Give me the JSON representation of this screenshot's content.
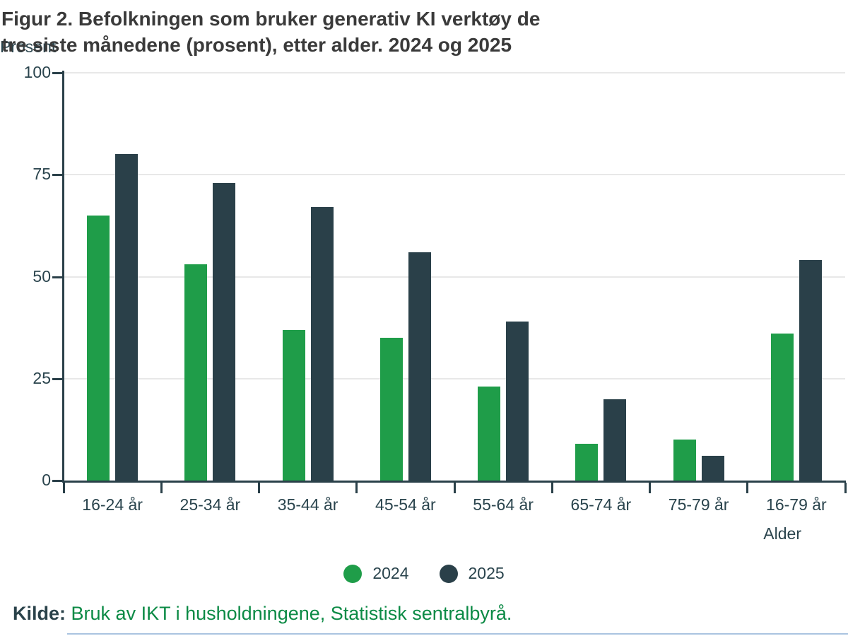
{
  "figure": {
    "title_line1": "Figur 2. Befolkningen som bruker generativ KI verktøy de",
    "title_line2": "tre siste månedene (prosent), etter alder. 2024 og 2025",
    "y_axis_label": "Prosent",
    "x_axis_label": "Alder",
    "source_label": "Kilde:",
    "source_link_text": "Bruk av IKT i husholdningene, Statistisk sentralbyrå."
  },
  "legend": {
    "position": "bottom",
    "items": [
      {
        "label": "2024",
        "color": "#1f9d49"
      },
      {
        "label": "2025",
        "color": "#2a4049"
      }
    ]
  },
  "chart_data": {
    "type": "bar",
    "title": "Figur 2. Befolkningen som bruker generativ KI verktøy de tre siste månedene (prosent), etter alder. 2024 og 2025",
    "xlabel": "Alder",
    "ylabel": "Prosent",
    "ylim": [
      0,
      100
    ],
    "yticks": [
      0,
      25,
      50,
      75,
      100
    ],
    "grid": true,
    "categories": [
      "16-24 år",
      "25-34 år",
      "35-44 år",
      "45-54 år",
      "55-64 år",
      "65-74 år",
      "75-79 år",
      "16-79 år"
    ],
    "series": [
      {
        "name": "2024",
        "color": "#1f9d49",
        "values": [
          65,
          53,
          37,
          35,
          23,
          9,
          10,
          36
        ]
      },
      {
        "name": "2025",
        "color": "#2a4049",
        "values": [
          80,
          73,
          67,
          56,
          39,
          20,
          6,
          54
        ]
      }
    ]
  },
  "colors": {
    "axis": "#2a4049",
    "tick_text": "#2a444d",
    "gridline": "#e8e8e8",
    "title_text": "#3a3a3a",
    "source_link": "#0b8a45"
  }
}
